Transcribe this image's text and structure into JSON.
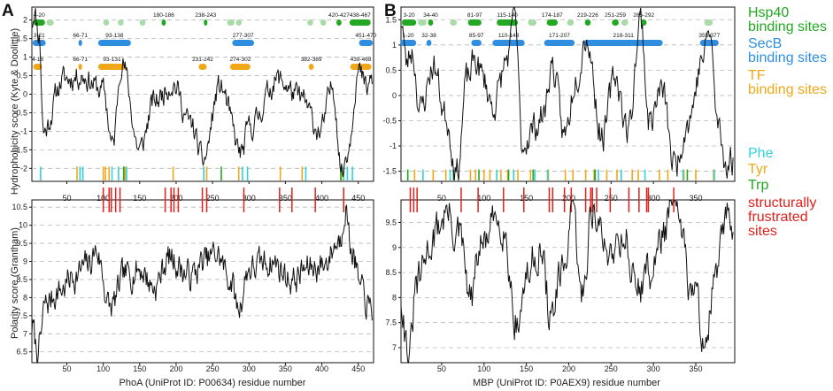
{
  "colors": {
    "hsp40": "#22a822",
    "hsp40_light": "#a8dba8",
    "secb": "#2f8ee0",
    "tf": "#f0a818",
    "phe": "#30d2dc",
    "tyr": "#f0a818",
    "trp": "#22a822",
    "frustrated": "#e0201c",
    "line": "#111111",
    "grid": "#b8b8b8"
  },
  "legend": {
    "hsp40": "Hsp40\nbinding sites",
    "secb": "SecB\nbinding sites",
    "tf": "TF\nbinding sites",
    "phe": "Phe",
    "tyr": "Tyr",
    "trp": "Trp",
    "frustrated": "structurally\nfrustrated\nsites"
  },
  "chart_data": [
    {
      "panel": "A",
      "type": "line",
      "xlabel": "PhoA (UniProt ID: P00634) residue number",
      "x_ticks": [
        50,
        100,
        150,
        200,
        250,
        300,
        350,
        400,
        450
      ],
      "xlim": [
        2,
        471
      ],
      "top": {
        "ylabel": "Hydrophobicity score (Kyte & Doolittle)",
        "ylim": [
          -2.35,
          2.35
        ],
        "y_ticks": [
          -2,
          -1.5,
          -1,
          -0.5,
          0,
          0.5,
          1,
          1.5,
          2
        ],
        "hsp40_sites": [
          "4-20",
          "180-186",
          "238-243",
          "420-427",
          "438-467"
        ],
        "hsp40_light_sites": [
          "22-32",
          "100-108",
          "120-128",
          "150-158",
          "270-280",
          "282-290",
          "380-388",
          "398-406"
        ],
        "secb_sites": [
          "3-21",
          "66-71",
          "93-138",
          "277-307",
          "451-470"
        ],
        "tf_sites": [
          "4-16",
          "66-71",
          "93-131",
          "231-242",
          "274-302",
          "382-389",
          "439-468"
        ],
        "phe": [
          14,
          68,
          72,
          112,
          121,
          132,
          238,
          291,
          298,
          378,
          430,
          435,
          442
        ],
        "tyr": [
          64,
          100,
          103,
          108,
          130,
          196,
          242,
          286,
          343,
          373,
          427
        ],
        "trp": [
          128,
          262,
          426
        ],
        "profile_seed": 11,
        "profile_features": [
          [
            3,
            2.0
          ],
          [
            5,
            2.3
          ],
          [
            12,
            1.6
          ],
          [
            18,
            -1.0
          ],
          [
            45,
            0.4
          ],
          [
            70,
            0.5
          ],
          [
            100,
            0.1
          ],
          [
            113,
            -1.4
          ],
          [
            125,
            0.9
          ],
          [
            150,
            -1.5
          ],
          [
            170,
            -0.2
          ],
          [
            195,
            0.3
          ],
          [
            220,
            -0.8
          ],
          [
            237,
            -1.8
          ],
          [
            260,
            0.2
          ],
          [
            290,
            -1.6
          ],
          [
            300,
            -0.9
          ],
          [
            340,
            0.4
          ],
          [
            370,
            -0.1
          ],
          [
            398,
            -1.0
          ],
          [
            415,
            0.2
          ],
          [
            428,
            -2.1
          ],
          [
            435,
            -1.5
          ],
          [
            450,
            0.6
          ],
          [
            463,
            0.1
          ],
          [
            468,
            0.4
          ]
        ]
      },
      "bottom": {
        "ylabel": "Polarity score (Grantham)",
        "ylim": [
          6.2,
          10.7
        ],
        "y_ticks": [
          6.5,
          7,
          7.5,
          8,
          8.5,
          9,
          9.5,
          10,
          10.5
        ],
        "frustrated_sites": [
          100,
          108,
          111,
          117,
          123,
          185,
          193,
          197,
          203,
          236,
          242,
          293,
          342,
          359,
          391,
          430
        ],
        "profile_seed": 7,
        "profile_features": [
          [
            3,
            7.2
          ],
          [
            8,
            6.6
          ],
          [
            10,
            6.3
          ],
          [
            14,
            6.9
          ],
          [
            20,
            7.8
          ],
          [
            40,
            8.2
          ],
          [
            60,
            8.6
          ],
          [
            80,
            8.9
          ],
          [
            90,
            9.3
          ],
          [
            110,
            7.7
          ],
          [
            130,
            8.6
          ],
          [
            150,
            8.8
          ],
          [
            170,
            8.3
          ],
          [
            190,
            9.1
          ],
          [
            220,
            8.6
          ],
          [
            240,
            9.0
          ],
          [
            255,
            9.2
          ],
          [
            275,
            8.5
          ],
          [
            285,
            7.7
          ],
          [
            300,
            8.8
          ],
          [
            330,
            9.0
          ],
          [
            360,
            8.5
          ],
          [
            380,
            8.8
          ],
          [
            400,
            8.9
          ],
          [
            425,
            9.6
          ],
          [
            432,
            10.6
          ],
          [
            440,
            9.4
          ],
          [
            455,
            8.1
          ],
          [
            468,
            7.6
          ]
        ]
      }
    },
    {
      "panel": "B",
      "type": "line",
      "xlabel": "MBP (UniProt ID: P0AEX9) residue number",
      "x_ticks": [
        50,
        100,
        150,
        200,
        250,
        300,
        350
      ],
      "xlim": [
        2,
        396
      ],
      "top": {
        "ylabel": "",
        "ylim": [
          -1.7,
          1.75
        ],
        "y_ticks": [
          -1.5,
          -1,
          -0.5,
          0,
          0.5,
          1,
          1.5
        ],
        "hsp40_sites": [
          "3-20",
          "34-40",
          "81-97",
          "115-140",
          "174-187",
          "219-226",
          "251-259",
          "285-292"
        ],
        "hsp40_light_sites": [
          "22-32",
          "60-68",
          "152-162",
          "198-206",
          "262-270",
          "360-370"
        ],
        "secb_sites": [
          "1-20",
          "32-38",
          "85-97",
          "110-148",
          "171-207",
          "218-311",
          "355-377"
        ],
        "tf_sites": [],
        "phe": [
          10,
          28,
          60,
          115,
          135,
          160,
          175,
          235,
          262,
          290,
          335,
          372
        ],
        "tyr": [
          18,
          40,
          55,
          84,
          90,
          100,
          107,
          120,
          128,
          140,
          155,
          176,
          196,
          205,
          220,
          230,
          245,
          257,
          275,
          282,
          307,
          317,
          336,
          350,
          371
        ],
        "trp": [
          10,
          64,
          94,
          129,
          158,
          231,
          231,
          340
        ],
        "profile_seed": 23,
        "profile_features": [
          [
            3,
            1.5
          ],
          [
            8,
            0.6
          ],
          [
            15,
            0.9
          ],
          [
            25,
            -0.3
          ],
          [
            40,
            0.6
          ],
          [
            55,
            -0.4
          ],
          [
            68,
            -1.5
          ],
          [
            80,
            0.3
          ],
          [
            90,
            0.7
          ],
          [
            100,
            0.3
          ],
          [
            110,
            -0.2
          ],
          [
            130,
            0.8
          ],
          [
            136,
            1.7
          ],
          [
            145,
            -1.0
          ],
          [
            155,
            -0.7
          ],
          [
            170,
            -0.4
          ],
          [
            180,
            0.6
          ],
          [
            195,
            -0.8
          ],
          [
            210,
            0.5
          ],
          [
            220,
            1.2
          ],
          [
            240,
            -0.8
          ],
          [
            255,
            0.4
          ],
          [
            270,
            -0.7
          ],
          [
            285,
            1.5
          ],
          [
            295,
            -0.5
          ],
          [
            310,
            0.1
          ],
          [
            325,
            -1.4
          ],
          [
            340,
            -0.5
          ],
          [
            360,
            0.8
          ],
          [
            366,
            1.3
          ],
          [
            376,
            -0.6
          ],
          [
            385,
            -1.3
          ]
        ]
      },
      "bottom": {
        "ylabel": "",
        "ylim": [
          6.7,
          9.95
        ],
        "y_ticks": [
          7,
          7.5,
          8,
          8.5,
          9,
          9.5
        ],
        "frustrated_sites": [
          13,
          17,
          21,
          73,
          93,
          123,
          147,
          177,
          181,
          195,
          203,
          220,
          226,
          228,
          233,
          249,
          271,
          283,
          292,
          294,
          324
        ],
        "profile_seed": 31,
        "profile_features": [
          [
            3,
            8.0
          ],
          [
            8,
            7.2
          ],
          [
            12,
            6.8
          ],
          [
            20,
            8.2
          ],
          [
            40,
            9.2
          ],
          [
            55,
            9.7
          ],
          [
            70,
            9.2
          ],
          [
            85,
            7.9
          ],
          [
            95,
            9.0
          ],
          [
            120,
            9.6
          ],
          [
            140,
            7.5
          ],
          [
            150,
            8.4
          ],
          [
            165,
            9.0
          ],
          [
            180,
            7.6
          ],
          [
            190,
            8.3
          ],
          [
            205,
            9.6
          ],
          [
            215,
            8.0
          ],
          [
            228,
            9.8
          ],
          [
            245,
            8.9
          ],
          [
            265,
            9.3
          ],
          [
            280,
            8.2
          ],
          [
            300,
            8.6
          ],
          [
            310,
            9.3
          ],
          [
            325,
            9.8
          ],
          [
            345,
            8.2
          ],
          [
            362,
            7.2
          ],
          [
            372,
            8.3
          ],
          [
            388,
            9.6
          ],
          [
            394,
            9.5
          ]
        ]
      }
    }
  ]
}
